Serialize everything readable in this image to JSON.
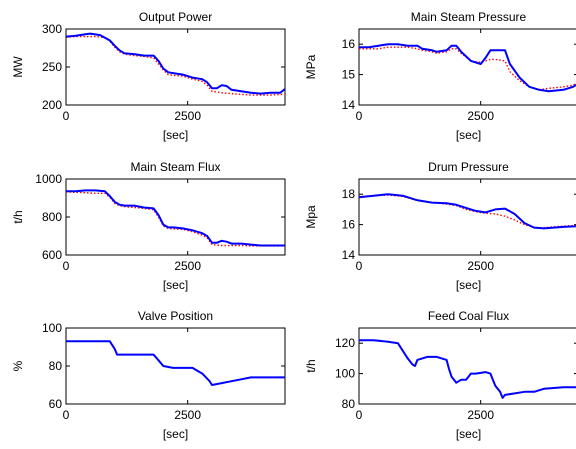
{
  "colors": {
    "actual": "#0000ff",
    "reference": "#ff0000",
    "axis": "#000000"
  },
  "chart_data": [
    {
      "type": "line",
      "title": "Output Power",
      "xlabel": "[sec]",
      "ylabel": "MW",
      "xlim": [
        0,
        4500
      ],
      "ylim": [
        200,
        300
      ],
      "xticks": [
        0,
        2500
      ],
      "yticks": [
        200,
        250,
        300
      ],
      "series": [
        {
          "style": "solid-blue",
          "x": [
            0,
            200,
            400,
            500,
            700,
            900,
            1000,
            1100,
            1200,
            1400,
            1600,
            1800,
            1900,
            2000,
            2100,
            2200,
            2400,
            2600,
            2800,
            2900,
            3000,
            3100,
            3200,
            3300,
            3400,
            3600,
            3800,
            4000,
            4200,
            4400,
            4500
          ],
          "y": [
            290,
            291,
            293,
            294,
            292,
            285,
            278,
            272,
            268,
            267,
            265,
            265,
            258,
            248,
            243,
            242,
            240,
            236,
            234,
            230,
            222,
            222,
            226,
            225,
            220,
            218,
            216,
            215,
            216,
            216,
            221
          ]
        },
        {
          "style": "dotted-red",
          "x": [
            0,
            200,
            400,
            600,
            800,
            900,
            1000,
            1100,
            1200,
            1400,
            1600,
            1800,
            1900,
            2000,
            2100,
            2200,
            2400,
            2600,
            2800,
            2900,
            3000,
            3200,
            3400,
            3600,
            3800,
            4000,
            4200,
            4400,
            4500
          ],
          "y": [
            289,
            290,
            290,
            290,
            289,
            284,
            276,
            270,
            267,
            265,
            264,
            262,
            254,
            246,
            240,
            239,
            238,
            234,
            231,
            226,
            218,
            216,
            215,
            214,
            213,
            213,
            213,
            214,
            214
          ]
        }
      ]
    },
    {
      "type": "line",
      "title": "Main Steam Pressure",
      "xlabel": "[sec]",
      "ylabel": "MPa",
      "xlim": [
        0,
        4500
      ],
      "ylim": [
        14,
        16.5
      ],
      "xticks": [
        0,
        2500
      ],
      "yticks": [
        14,
        15,
        16
      ],
      "series": [
        {
          "style": "solid-blue",
          "x": [
            0,
            200,
            400,
            600,
            800,
            1000,
            1200,
            1300,
            1500,
            1600,
            1800,
            1900,
            2000,
            2100,
            2300,
            2500,
            2600,
            2700,
            2800,
            3000,
            3100,
            3300,
            3500,
            3700,
            3900,
            4200,
            4400,
            4500
          ],
          "y": [
            15.9,
            15.9,
            15.95,
            16.0,
            16.0,
            15.95,
            15.95,
            15.85,
            15.8,
            15.75,
            15.8,
            15.95,
            15.95,
            15.75,
            15.45,
            15.35,
            15.55,
            15.8,
            15.8,
            15.8,
            15.35,
            14.9,
            14.6,
            14.5,
            14.45,
            14.5,
            14.6,
            14.7
          ]
        },
        {
          "style": "dotted-red",
          "x": [
            0,
            200,
            400,
            600,
            800,
            1000,
            1200,
            1300,
            1500,
            1600,
            1800,
            1900,
            2000,
            2100,
            2300,
            2500,
            2600,
            2700,
            2800,
            3000,
            3100,
            3300,
            3500,
            3700,
            3900,
            4200,
            4400,
            4500
          ],
          "y": [
            15.85,
            15.85,
            15.85,
            15.9,
            15.9,
            15.9,
            15.85,
            15.8,
            15.75,
            15.7,
            15.75,
            15.85,
            15.85,
            15.7,
            15.45,
            15.4,
            15.45,
            15.5,
            15.5,
            15.45,
            15.1,
            14.8,
            14.6,
            14.5,
            14.55,
            14.6,
            14.65,
            14.75
          ]
        }
      ]
    },
    {
      "type": "line",
      "title": "Main Steam Flux",
      "xlabel": "[sec]",
      "ylabel": "t/h",
      "xlim": [
        0,
        4500
      ],
      "ylim": [
        600,
        1000
      ],
      "xticks": [
        0,
        2500
      ],
      "yticks": [
        600,
        800,
        1000
      ],
      "series": [
        {
          "style": "solid-blue",
          "x": [
            0,
            200,
            400,
            600,
            800,
            900,
            1000,
            1100,
            1200,
            1400,
            1600,
            1800,
            1900,
            2000,
            2100,
            2200,
            2400,
            2600,
            2800,
            2900,
            3000,
            3100,
            3200,
            3300,
            3400,
            3600,
            3800,
            4000,
            4200,
            4400,
            4500
          ],
          "y": [
            935,
            935,
            940,
            940,
            935,
            910,
            880,
            865,
            860,
            860,
            850,
            845,
            810,
            760,
            745,
            745,
            740,
            730,
            715,
            700,
            665,
            665,
            675,
            670,
            660,
            660,
            655,
            650,
            650,
            650,
            650
          ]
        },
        {
          "style": "dotted-red",
          "x": [
            0,
            200,
            400,
            600,
            800,
            900,
            1000,
            1100,
            1200,
            1400,
            1600,
            1800,
            1900,
            2000,
            2100,
            2200,
            2400,
            2600,
            2800,
            2900,
            3000,
            3200,
            3400,
            3600,
            3800,
            4000,
            4200,
            4400,
            4500
          ],
          "y": [
            932,
            930,
            928,
            925,
            925,
            905,
            872,
            860,
            855,
            850,
            845,
            838,
            800,
            752,
            740,
            738,
            735,
            722,
            705,
            690,
            655,
            650,
            650,
            650,
            648,
            648,
            648,
            648,
            648
          ]
        }
      ]
    },
    {
      "type": "line",
      "title": "Drum Pressure",
      "xlabel": "[sec]",
      "ylabel": "Mpa",
      "xlim": [
        0,
        4500
      ],
      "ylim": [
        14,
        19
      ],
      "xticks": [
        0,
        2500
      ],
      "yticks": [
        14,
        16,
        18
      ],
      "series": [
        {
          "style": "solid-blue",
          "x": [
            0,
            300,
            600,
            900,
            1200,
            1500,
            1800,
            2000,
            2200,
            2400,
            2600,
            2800,
            3000,
            3200,
            3400,
            3600,
            3800,
            4000,
            4200,
            4500
          ],
          "y": [
            17.8,
            17.9,
            18.0,
            17.9,
            17.6,
            17.45,
            17.4,
            17.3,
            17.1,
            16.9,
            16.8,
            17.0,
            17.05,
            16.7,
            16.1,
            15.8,
            15.75,
            15.8,
            15.85,
            15.9
          ]
        },
        {
          "style": "dotted-red",
          "x": [
            0,
            300,
            600,
            900,
            1200,
            1500,
            1800,
            2000,
            2200,
            2400,
            2600,
            2800,
            3000,
            3200,
            3400,
            3600,
            3800,
            4000,
            4200,
            4500
          ],
          "y": [
            17.85,
            17.9,
            17.95,
            17.85,
            17.6,
            17.45,
            17.35,
            17.25,
            17.0,
            16.85,
            16.75,
            16.7,
            16.55,
            16.3,
            16.0,
            15.8,
            15.8,
            15.85,
            15.9,
            15.95
          ]
        }
      ]
    },
    {
      "type": "line",
      "title": "Valve Position",
      "xlabel": "[sec]",
      "ylabel": "%",
      "xlim": [
        0,
        4500
      ],
      "ylim": [
        60,
        100
      ],
      "xticks": [
        0,
        2500
      ],
      "yticks": [
        60,
        80,
        100
      ],
      "series": [
        {
          "style": "solid-blue",
          "x": [
            0,
            400,
            900,
            1000,
            1050,
            1300,
            1800,
            1900,
            2000,
            2200,
            2600,
            2800,
            2950,
            3000,
            3200,
            3400,
            3600,
            3800,
            4200,
            4500
          ],
          "y": [
            93,
            93,
            93,
            89,
            86,
            86,
            86,
            83,
            80,
            79,
            79,
            76,
            72,
            70,
            71,
            72,
            73,
            74,
            74,
            74
          ]
        }
      ]
    },
    {
      "type": "line",
      "title": "Feed Coal Flux",
      "xlabel": "[sec]",
      "ylabel": "t/h",
      "xlim": [
        0,
        4500
      ],
      "ylim": [
        80,
        130
      ],
      "xticks": [
        0,
        2500
      ],
      "yticks": [
        80,
        100,
        120
      ],
      "series": [
        {
          "style": "solid-blue",
          "x": [
            0,
            300,
            600,
            800,
            900,
            1000,
            1100,
            1150,
            1200,
            1400,
            1600,
            1800,
            1850,
            1900,
            2000,
            2100,
            2200,
            2300,
            2400,
            2600,
            2700,
            2800,
            2900,
            2950,
            3000,
            3200,
            3400,
            3600,
            3800,
            4200,
            4500
          ],
          "y": [
            122,
            122,
            121,
            120,
            115,
            110,
            106,
            105,
            109,
            111,
            111,
            109,
            103,
            98,
            94,
            96,
            96,
            100,
            100,
            101,
            100,
            92,
            88,
            84,
            86,
            87,
            88,
            88,
            90,
            91,
            91
          ]
        }
      ]
    }
  ]
}
